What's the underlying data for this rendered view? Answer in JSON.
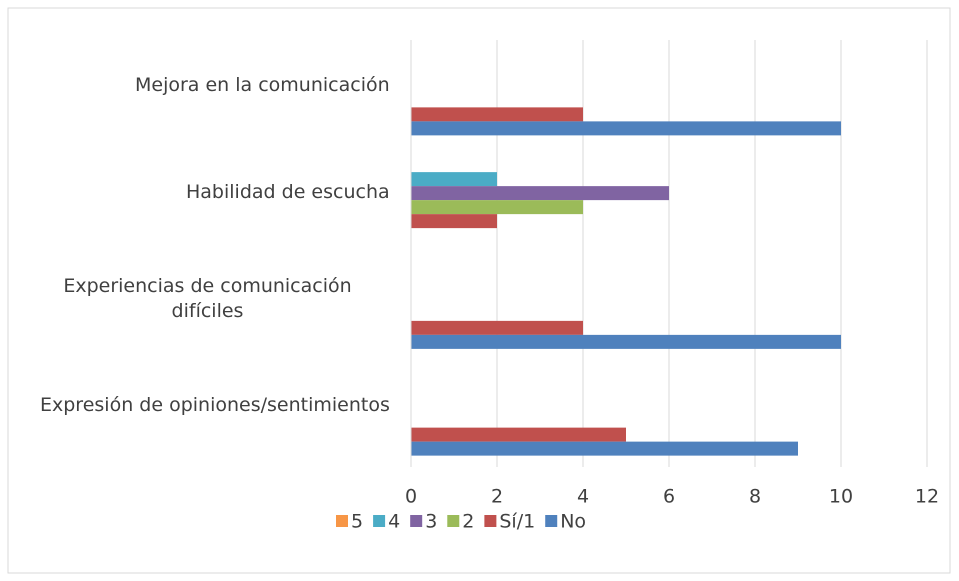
{
  "chart_data": {
    "type": "bar",
    "orientation": "horizontal",
    "categories": [
      "Mejora en la comunicación",
      "Habilidad de escucha",
      "Experiencias de comunicación difíciles",
      "Expresión de opiniones/sentimientos"
    ],
    "series": [
      {
        "name": "5",
        "color": "#f79646",
        "values": [
          0,
          0,
          0,
          0
        ]
      },
      {
        "name": "4",
        "color": "#4bacc6",
        "values": [
          0,
          2,
          0,
          0
        ]
      },
      {
        "name": "3",
        "color": "#8064a2",
        "values": [
          0,
          6,
          0,
          0
        ]
      },
      {
        "name": "2",
        "color": "#9bbb59",
        "values": [
          0,
          4,
          0,
          0
        ]
      },
      {
        "name": "Sí/1",
        "color": "#c0504d",
        "values": [
          4,
          2,
          4,
          5
        ]
      },
      {
        "name": "No",
        "color": "#4f81bd",
        "values": [
          10,
          0,
          10,
          9
        ]
      }
    ],
    "xlim": [
      0,
      12
    ],
    "xticks": [
      0,
      2,
      4,
      6,
      8,
      10,
      12
    ],
    "grid": true,
    "legend": "bottom"
  }
}
